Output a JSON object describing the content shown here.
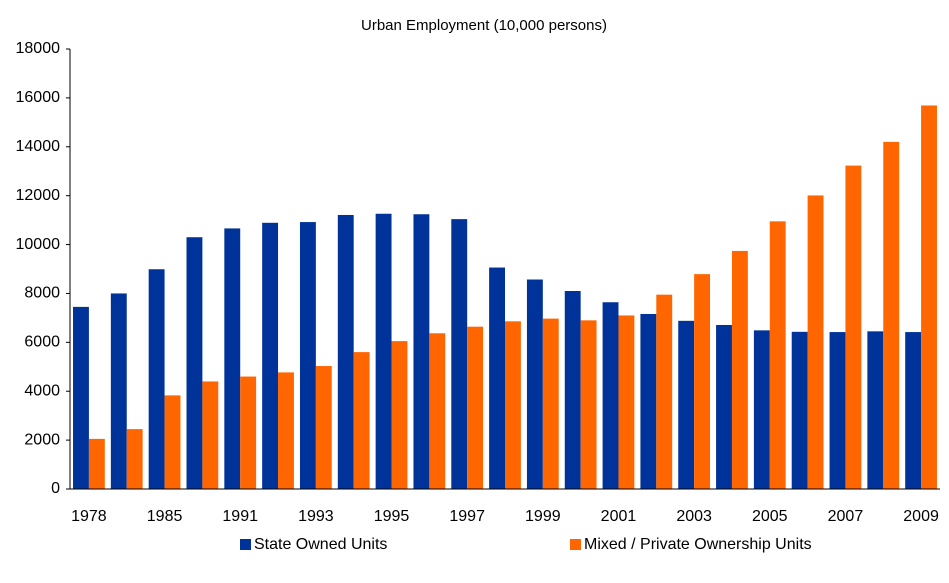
{
  "chart_data": {
    "type": "bar",
    "title": "Urban Employment (10,000 persons)",
    "categories": [
      "1978",
      null,
      "1985",
      null,
      "1991",
      null,
      "1993",
      null,
      "1995",
      null,
      "1997",
      null,
      "1999",
      null,
      "2001",
      null,
      "2003",
      null,
      "2005",
      null,
      "2007",
      null,
      "2009"
    ],
    "series": [
      {
        "name": "State Owned Units",
        "color": "#003399",
        "values": [
          7450,
          8000,
          8990,
          10300,
          10660,
          10890,
          10920,
          11210,
          11260,
          11240,
          11040,
          9060,
          8570,
          8100,
          7640,
          7160,
          6880,
          6710,
          6490,
          6430,
          6420,
          6450,
          6420
        ]
      },
      {
        "name": "Mixed / Private Ownership Units",
        "color": "#ff6600",
        "values": [
          2050,
          2450,
          3830,
          4400,
          4600,
          4770,
          5030,
          5600,
          6050,
          6370,
          6640,
          6860,
          6970,
          6900,
          7100,
          7950,
          8790,
          9740,
          10950,
          12010,
          13230,
          14200,
          15690
        ]
      }
    ],
    "ylim": [
      0,
      18000
    ],
    "yticks": [
      0,
      2000,
      4000,
      6000,
      8000,
      10000,
      12000,
      14000,
      16000,
      18000
    ],
    "grid": false,
    "legend": "bottom"
  }
}
